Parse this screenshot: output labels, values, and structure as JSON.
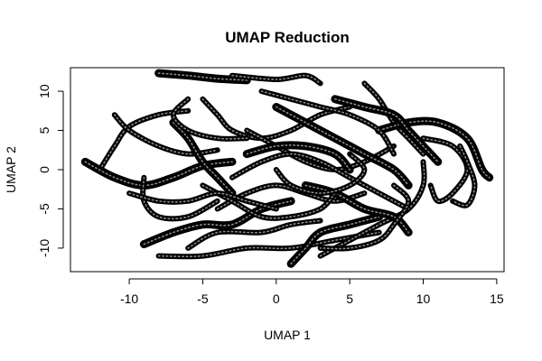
{
  "chart_data": {
    "type": "scatter",
    "title": "UMAP Reduction",
    "xlabel": "UMAP 1",
    "ylabel": "UMAP 2",
    "xlim": [
      -14,
      15.5
    ],
    "ylim": [
      -13,
      13
    ],
    "xticks": [
      -10,
      -5,
      0,
      5,
      10,
      15
    ],
    "yticks": [
      -10,
      -5,
      0,
      5,
      10
    ],
    "grid": false,
    "legend": "none",
    "marker": "open-circle",
    "point_color": "#000000",
    "trajectories": [
      [
        [
          -8,
          12.3
        ],
        [
          -6,
          12
        ],
        [
          -4,
          11.6
        ],
        [
          -2,
          11.4
        ]
      ],
      [
        [
          -3,
          12
        ],
        [
          0,
          11.5
        ],
        [
          2,
          12
        ],
        [
          3,
          11
        ]
      ],
      [
        [
          -12,
          0
        ],
        [
          -11,
          3
        ],
        [
          -10,
          5.5
        ],
        [
          -8,
          7
        ],
        [
          -6,
          7.5
        ]
      ],
      [
        [
          -13,
          1
        ],
        [
          -11,
          -1
        ],
        [
          -9,
          -2
        ],
        [
          -7,
          -1
        ],
        [
          -5,
          0.5
        ],
        [
          -3,
          1
        ]
      ],
      [
        [
          -11,
          7
        ],
        [
          -10,
          5
        ],
        [
          -8,
          3
        ],
        [
          -6,
          2
        ],
        [
          -4,
          2.5
        ]
      ],
      [
        [
          -9,
          -1
        ],
        [
          -9,
          -4
        ],
        [
          -8,
          -6
        ],
        [
          -6,
          -6
        ],
        [
          -4,
          -4
        ]
      ],
      [
        [
          -9,
          -9.5
        ],
        [
          -7,
          -8
        ],
        [
          -5,
          -7
        ],
        [
          -3,
          -7
        ],
        [
          -1,
          -5
        ],
        [
          1,
          -4
        ]
      ],
      [
        [
          -8,
          -11
        ],
        [
          -5,
          -11
        ],
        [
          -2,
          -10
        ],
        [
          1,
          -10
        ],
        [
          4,
          -9
        ],
        [
          7,
          -8
        ]
      ],
      [
        [
          -6,
          -10
        ],
        [
          -4,
          -8
        ],
        [
          -1,
          -8
        ],
        [
          1,
          -7
        ],
        [
          3,
          -6.5
        ]
      ],
      [
        [
          -7,
          6
        ],
        [
          -6,
          4
        ],
        [
          -5,
          1
        ],
        [
          -4,
          -1
        ],
        [
          -3,
          -3
        ]
      ],
      [
        [
          -5,
          9
        ],
        [
          -4,
          7
        ],
        [
          -3,
          5
        ],
        [
          -1,
          4
        ],
        [
          1,
          5
        ],
        [
          3,
          7
        ],
        [
          5,
          8
        ]
      ],
      [
        [
          -2,
          5
        ],
        [
          0,
          3
        ],
        [
          2,
          1
        ],
        [
          4,
          0
        ],
        [
          6,
          1
        ],
        [
          8,
          3
        ]
      ],
      [
        [
          0,
          8
        ],
        [
          2,
          6
        ],
        [
          4,
          4
        ],
        [
          6,
          2
        ],
        [
          8,
          0
        ],
        [
          9,
          -2
        ]
      ],
      [
        [
          -4,
          -5
        ],
        [
          -2,
          -3
        ],
        [
          0,
          -2
        ],
        [
          2,
          -3
        ],
        [
          4,
          -4
        ],
        [
          6,
          -3
        ]
      ],
      [
        [
          -3,
          -1
        ],
        [
          -1,
          1
        ],
        [
          1,
          2
        ],
        [
          3,
          1
        ],
        [
          5,
          -1
        ],
        [
          7,
          -3
        ],
        [
          9,
          -5
        ]
      ],
      [
        [
          1,
          -12
        ],
        [
          2,
          -10
        ],
        [
          3,
          -8
        ],
        [
          5,
          -7
        ],
        [
          7,
          -6
        ]
      ],
      [
        [
          3,
          -11
        ],
        [
          5,
          -9
        ],
        [
          7,
          -7
        ],
        [
          9,
          -5
        ],
        [
          10,
          -2
        ],
        [
          10,
          1
        ]
      ],
      [
        [
          6,
          11
        ],
        [
          7,
          9
        ],
        [
          8,
          6
        ],
        [
          9,
          4
        ],
        [
          10,
          2
        ]
      ],
      [
        [
          7,
          5
        ],
        [
          9,
          6
        ],
        [
          11,
          6
        ],
        [
          13,
          4
        ],
        [
          14,
          0
        ],
        [
          14.5,
          -1
        ]
      ],
      [
        [
          10,
          4
        ],
        [
          12,
          3
        ],
        [
          13,
          0
        ],
        [
          12,
          -3
        ],
        [
          11,
          -4
        ],
        [
          10.5,
          -2
        ]
      ],
      [
        [
          12.5,
          3
        ],
        [
          13,
          1
        ],
        [
          13.5,
          -2
        ],
        [
          13,
          -4.5
        ],
        [
          12,
          -4
        ]
      ],
      [
        [
          4,
          9
        ],
        [
          6,
          8
        ],
        [
          8,
          7
        ],
        [
          9,
          5
        ],
        [
          10,
          3
        ],
        [
          11,
          1
        ]
      ],
      [
        [
          -1,
          10
        ],
        [
          1,
          9
        ],
        [
          3,
          8
        ],
        [
          5,
          7
        ],
        [
          7,
          5
        ],
        [
          8,
          2
        ]
      ],
      [
        [
          -6,
          9
        ],
        [
          -7,
          7
        ],
        [
          -6,
          5
        ],
        [
          -4,
          4
        ],
        [
          -2,
          4
        ]
      ],
      [
        [
          2,
          -2
        ],
        [
          4,
          -3
        ],
        [
          6,
          -5
        ],
        [
          8,
          -6
        ],
        [
          9,
          -8
        ]
      ],
      [
        [
          -5,
          -2
        ],
        [
          -3,
          -4
        ],
        [
          -1,
          -6
        ],
        [
          1,
          -6
        ],
        [
          3,
          -5
        ],
        [
          4,
          -3
        ]
      ],
      [
        [
          0,
          0
        ],
        [
          1,
          -2
        ],
        [
          3,
          -3
        ],
        [
          5,
          -2
        ],
        [
          6,
          0
        ],
        [
          5,
          2
        ]
      ],
      [
        [
          -2,
          2
        ],
        [
          0,
          3
        ],
        [
          2,
          3
        ],
        [
          4,
          2
        ],
        [
          5,
          0
        ]
      ],
      [
        [
          -10,
          -3
        ],
        [
          -8,
          -4
        ],
        [
          -6,
          -4
        ],
        [
          -4,
          -3
        ],
        [
          -2,
          -4
        ],
        [
          0,
          -5
        ]
      ],
      [
        [
          8,
          -2
        ],
        [
          9,
          -4
        ],
        [
          8,
          -7
        ],
        [
          7,
          -9
        ],
        [
          5,
          -10
        ],
        [
          3,
          -10
        ]
      ]
    ]
  }
}
